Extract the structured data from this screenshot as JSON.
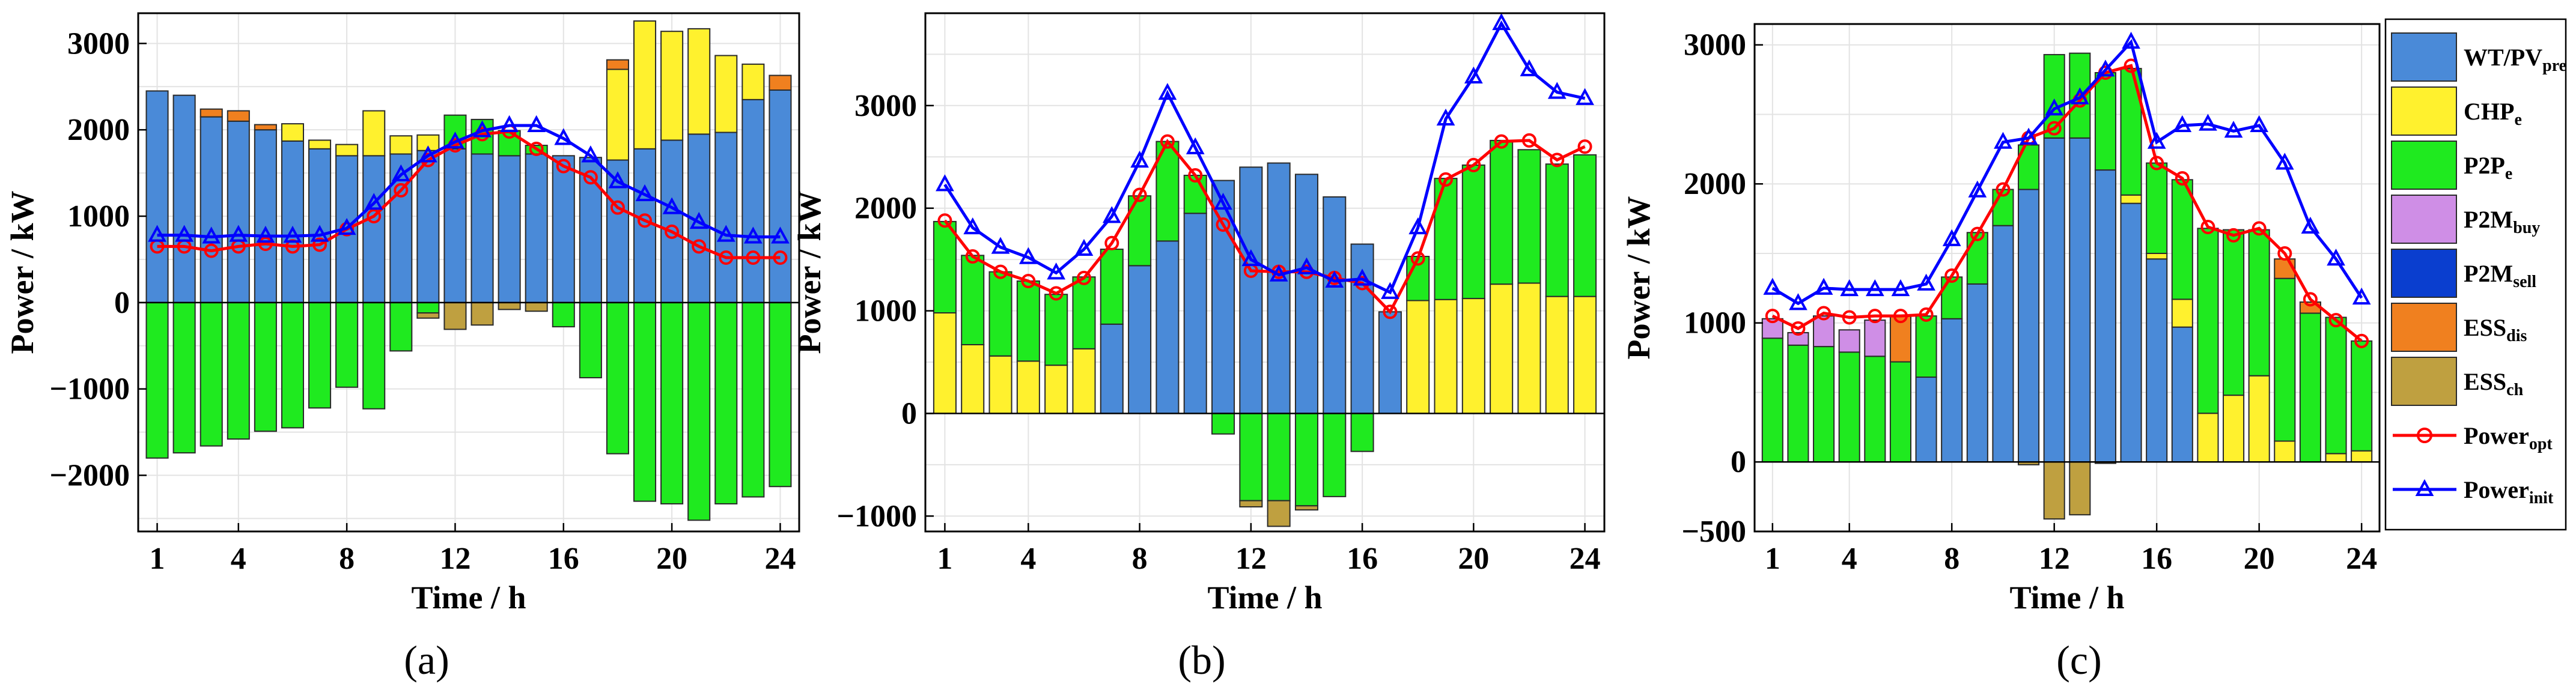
{
  "legend": {
    "items": [
      {
        "key": "wt",
        "base": "WT/PV",
        "sub": "pre",
        "kind": "bar",
        "color": "#4a8ad8"
      },
      {
        "key": "chp",
        "base": "CHP",
        "sub": "e",
        "kind": "bar",
        "color": "#fff12e"
      },
      {
        "key": "p2p",
        "base": "P2P",
        "sub": "e",
        "kind": "bar",
        "color": "#1fea1f"
      },
      {
        "key": "p2mbuy",
        "base": "P2M",
        "sub": "buy",
        "kind": "bar",
        "color": "#cf8ee6"
      },
      {
        "key": "p2msell",
        "base": "P2M",
        "sub": "sell",
        "kind": "bar",
        "color": "#0a3ecf"
      },
      {
        "key": "essdis",
        "base": "ESS",
        "sub": "dis",
        "kind": "bar",
        "color": "#f0801f"
      },
      {
        "key": "essch",
        "base": "ESS",
        "sub": "ch",
        "kind": "bar",
        "color": "#bfa040"
      },
      {
        "key": "popt",
        "base": "Power",
        "sub": "opt",
        "kind": "line",
        "color": "#ff0000",
        "marker": "circle"
      },
      {
        "key": "pinit",
        "base": "Power",
        "sub": "init",
        "kind": "line",
        "color": "#0000ff",
        "marker": "triangle"
      }
    ]
  },
  "chart_data": [
    {
      "type": "bar",
      "panel_label": "(a)",
      "xlabel": "Time / h",
      "ylabel": "Power / kW",
      "ylim": [
        -2650,
        3350
      ],
      "yticks": [
        -2000,
        -1000,
        0,
        1000,
        2000,
        3000
      ],
      "xticks": [
        1,
        4,
        8,
        12,
        16,
        20,
        24
      ],
      "grid": true,
      "hours": [
        1,
        2,
        3,
        4,
        5,
        6,
        7,
        8,
        9,
        10,
        11,
        12,
        13,
        14,
        15,
        16,
        17,
        18,
        19,
        20,
        21,
        22,
        23,
        24
      ],
      "stacks": {
        "wt": [
          2450,
          2400,
          2150,
          2100,
          2000,
          1870,
          1780,
          1700,
          1700,
          1720,
          1760,
          1780,
          1720,
          1700,
          1720,
          1700,
          1680,
          1650,
          1780,
          1880,
          1950,
          1970,
          2350,
          2460
        ],
        "chp": [
          0,
          0,
          0,
          0,
          0,
          200,
          100,
          130,
          520,
          210,
          180,
          0,
          0,
          0,
          0,
          0,
          0,
          1050,
          1480,
          1260,
          1220,
          890,
          410,
          0
        ],
        "p2p": [
          -1800,
          -1740,
          -1660,
          -1580,
          -1490,
          -1450,
          -1220,
          -980,
          -1230,
          -560,
          -120,
          390,
          400,
          290,
          100,
          -280,
          -870,
          -1750,
          -2300,
          -2330,
          -2520,
          -2330,
          -2250,
          -2130
        ],
        "p2mbuy": [
          0,
          0,
          0,
          0,
          0,
          0,
          0,
          0,
          0,
          0,
          0,
          0,
          0,
          0,
          0,
          0,
          0,
          0,
          0,
          0,
          0,
          0,
          0,
          0
        ],
        "p2msell": [
          0,
          0,
          0,
          0,
          0,
          0,
          0,
          0,
          0,
          0,
          0,
          0,
          0,
          0,
          0,
          0,
          0,
          0,
          0,
          0,
          0,
          0,
          0,
          0
        ],
        "essdis": [
          0,
          0,
          90,
          120,
          60,
          0,
          0,
          0,
          0,
          0,
          0,
          0,
          0,
          0,
          0,
          0,
          0,
          110,
          0,
          0,
          0,
          0,
          0,
          170
        ],
        "essch": [
          0,
          0,
          0,
          0,
          0,
          0,
          0,
          0,
          0,
          0,
          -60,
          -310,
          -260,
          -80,
          -100,
          0,
          0,
          0,
          0,
          0,
          0,
          0,
          0,
          0
        ]
      },
      "lines": {
        "popt": [
          650,
          650,
          600,
          650,
          680,
          650,
          670,
          850,
          1000,
          1300,
          1650,
          1820,
          1950,
          1980,
          1780,
          1580,
          1450,
          1100,
          950,
          820,
          650,
          520,
          520,
          520
        ],
        "pinit": [
          780,
          780,
          760,
          780,
          770,
          770,
          780,
          860,
          1150,
          1480,
          1700,
          1860,
          1990,
          2050,
          2050,
          1900,
          1700,
          1400,
          1250,
          1100,
          930,
          780,
          760,
          760
        ]
      }
    },
    {
      "type": "bar",
      "panel_label": "(b)",
      "xlabel": "Time / h",
      "ylabel": "Power / kW",
      "ylim": [
        -1150,
        3900
      ],
      "yticks": [
        -1000,
        0,
        1000,
        2000,
        3000
      ],
      "xticks": [
        1,
        4,
        8,
        12,
        16,
        20,
        24
      ],
      "grid": true,
      "hours": [
        1,
        2,
        3,
        4,
        5,
        6,
        7,
        8,
        9,
        10,
        11,
        12,
        13,
        14,
        15,
        16,
        17,
        18,
        19,
        20,
        21,
        22,
        23,
        24
      ],
      "stacks": {
        "wt": [
          0,
          0,
          0,
          0,
          0,
          0,
          870,
          1440,
          1680,
          1950,
          2270,
          2400,
          2440,
          2330,
          2110,
          1650,
          990,
          0,
          0,
          0,
          0,
          0,
          0,
          0
        ],
        "chp": [
          980,
          670,
          560,
          510,
          470,
          630,
          0,
          0,
          0,
          0,
          0,
          0,
          0,
          0,
          0,
          0,
          0,
          1100,
          1110,
          1120,
          1260,
          1270,
          1140,
          1140
        ],
        "p2p": [
          890,
          870,
          820,
          780,
          690,
          700,
          730,
          680,
          970,
          370,
          -200,
          -850,
          -850,
          -900,
          -810,
          -370,
          0,
          430,
          1180,
          1300,
          1400,
          1300,
          1290,
          1380
        ],
        "p2mbuy": [
          0,
          0,
          0,
          0,
          0,
          0,
          0,
          0,
          0,
          0,
          0,
          0,
          0,
          0,
          0,
          0,
          0,
          0,
          0,
          0,
          0,
          0,
          0,
          0
        ],
        "p2msell": [
          0,
          0,
          0,
          0,
          0,
          0,
          0,
          0,
          0,
          0,
          0,
          0,
          0,
          0,
          0,
          0,
          0,
          0,
          0,
          0,
          0,
          0,
          0,
          0
        ],
        "essdis": [
          0,
          0,
          0,
          0,
          0,
          0,
          0,
          0,
          0,
          0,
          0,
          0,
          0,
          0,
          0,
          0,
          0,
          0,
          0,
          0,
          0,
          0,
          0,
          0
        ],
        "essch": [
          0,
          0,
          0,
          0,
          0,
          0,
          0,
          0,
          0,
          0,
          0,
          -60,
          -250,
          -40,
          0,
          0,
          0,
          0,
          0,
          0,
          0,
          0,
          0,
          0
        ]
      },
      "lines": {
        "popt": [
          1880,
          1530,
          1380,
          1290,
          1170,
          1320,
          1660,
          2130,
          2650,
          2320,
          1840,
          1390,
          1380,
          1380,
          1320,
          1270,
          990,
          1510,
          2280,
          2420,
          2650,
          2660,
          2470,
          2600
        ],
        "pinit": [
          2230,
          1810,
          1620,
          1520,
          1370,
          1600,
          1920,
          2460,
          3120,
          2590,
          2050,
          1500,
          1350,
          1420,
          1290,
          1310,
          1180,
          1810,
          2870,
          3280,
          3800,
          3350,
          3130,
          3070
        ]
      }
    },
    {
      "type": "bar",
      "panel_label": "(c)",
      "xlabel": "Time / h",
      "ylabel": "Power / kW",
      "ylim": [
        -500,
        3150
      ],
      "yticks": [
        -500,
        0,
        1000,
        2000,
        3000
      ],
      "xticks": [
        1,
        4,
        8,
        12,
        16,
        20,
        24
      ],
      "grid": true,
      "hours": [
        1,
        2,
        3,
        4,
        5,
        6,
        7,
        8,
        9,
        10,
        11,
        12,
        13,
        14,
        15,
        16,
        17,
        18,
        19,
        20,
        21,
        22,
        23,
        24
      ],
      "stacks": {
        "wt": [
          0,
          0,
          0,
          0,
          0,
          0,
          610,
          1030,
          1280,
          1700,
          1960,
          2330,
          2330,
          2100,
          1860,
          1460,
          970,
          0,
          0,
          0,
          0,
          0,
          0,
          0
        ],
        "chp": [
          0,
          0,
          0,
          0,
          0,
          0,
          0,
          0,
          0,
          0,
          0,
          0,
          0,
          0,
          60,
          40,
          200,
          350,
          480,
          620,
          150,
          0,
          60,
          80
        ],
        "p2p": [
          890,
          840,
          830,
          790,
          760,
          720,
          440,
          300,
          370,
          260,
          320,
          600,
          610,
          700,
          910,
          650,
          860,
          1330,
          1190,
          1050,
          1170,
          1070,
          980,
          790
        ],
        "p2mbuy": [
          140,
          90,
          220,
          160,
          260,
          0,
          0,
          0,
          0,
          0,
          0,
          0,
          0,
          0,
          0,
          0,
          0,
          0,
          0,
          0,
          0,
          0,
          0,
          0
        ],
        "p2msell": [
          0,
          0,
          0,
          0,
          0,
          0,
          0,
          0,
          0,
          0,
          0,
          0,
          0,
          0,
          0,
          0,
          0,
          0,
          0,
          0,
          0,
          0,
          0,
          0
        ],
        "essdis": [
          0,
          0,
          0,
          0,
          0,
          330,
          0,
          0,
          0,
          0,
          0,
          0,
          0,
          0,
          0,
          0,
          0,
          0,
          0,
          0,
          140,
          80,
          0,
          0
        ],
        "essch": [
          0,
          0,
          0,
          0,
          0,
          0,
          0,
          0,
          0,
          0,
          -20,
          -410,
          -380,
          -10,
          0,
          0,
          0,
          0,
          0,
          0,
          0,
          0,
          0,
          0
        ]
      },
      "lines": {
        "popt": [
          1050,
          960,
          1070,
          1040,
          1050,
          1050,
          1060,
          1340,
          1640,
          1960,
          2330,
          2400,
          2600,
          2800,
          2850,
          2150,
          2040,
          1690,
          1630,
          1680,
          1500,
          1170,
          1020,
          870
        ],
        "pinit": [
          1250,
          1140,
          1250,
          1240,
          1240,
          1240,
          1280,
          1600,
          1950,
          2300,
          2330,
          2540,
          2620,
          2820,
          3020,
          2300,
          2420,
          2430,
          2380,
          2420,
          2150,
          1690,
          1460,
          1180
        ]
      }
    }
  ]
}
